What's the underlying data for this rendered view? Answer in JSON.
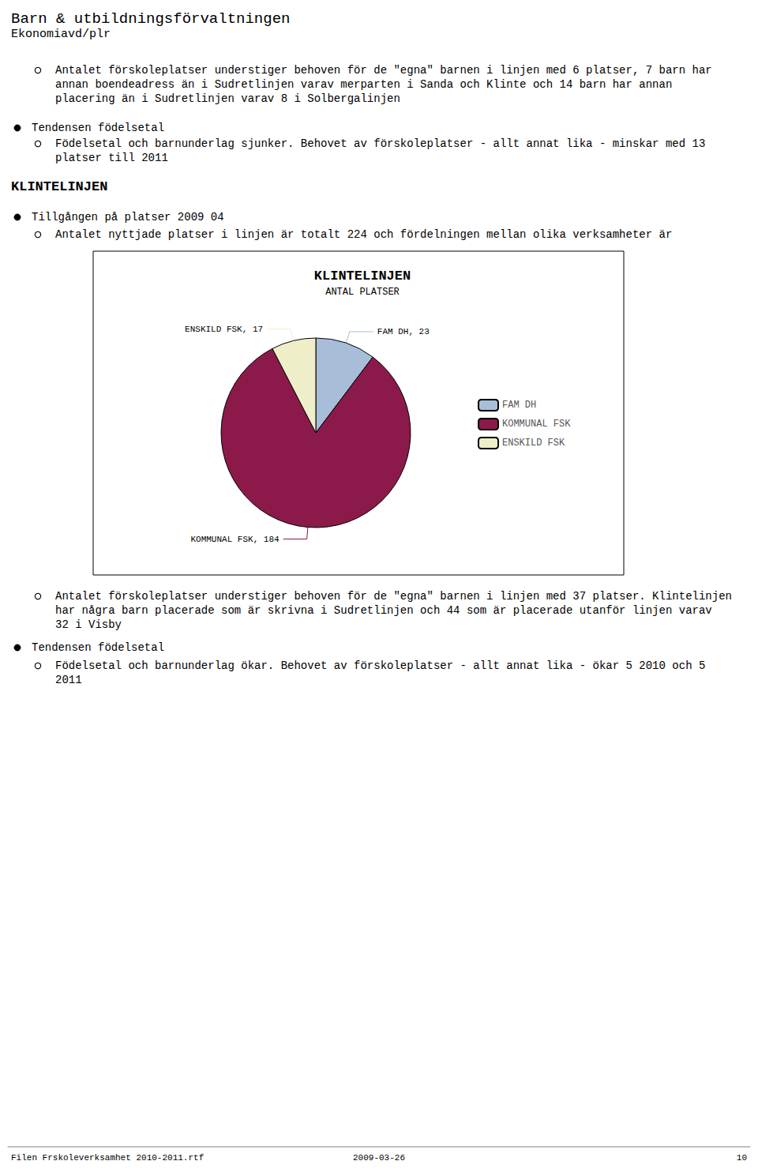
{
  "chart_data": {
    "type": "pie",
    "title": "KLINTELINJEN",
    "subtitle": "ANTAL PLATSER",
    "categories": [
      "FAM DH",
      "KOMMUNAL FSK",
      "ENSKILD FSK"
    ],
    "values": [
      23,
      184,
      17
    ],
    "value_labels": [
      "FAM DH, 23",
      "KOMMUNAL FSK, 184",
      "ENSKILD FSK, 17"
    ],
    "colors": [
      "#a8bdd8",
      "#8b1a4a",
      "#eeeec8"
    ],
    "data_labels": true,
    "legend": "right",
    "annotations": [
      "Barn & utbildningsförvaltningen",
      "Ekonomiavd/plr",
      "Antalet förskoleplatser understiger behoven för de \"egna\" barnen i linjen med 6 platser, 7 barn har",
      "annan boendeadress än i Sudretlinjen varav merparten i Sanda och Klinte och 14 barn har annan",
      "placering än i Sudretlinjen varav 8 i Solbergalinjen",
      "Tendensen födelsetal",
      "Födelsetal och barnunderlag sjunker. Behovet av förskoleplatser - allt annat lika - minskar med 13",
      "platser till 2011",
      "KLINTELINJEN",
      "Tillgången på platser 2009 04",
      "Antalet nyttjade platser i linjen är totalt 224 och fördelningen mellan olika verksamheter är",
      "Antalet förskoleplatser understiger behoven för de \"egna\" barnen i linjen med 37 platser. Klintelinjen",
      "har några barn placerade som är skrivna i Sudretlinjen och 44 som är placerade utanför linjen varav",
      "32 i Visby",
      "Tendensen födelsetal",
      "Födelsetal och barnunderlag ökar. Behovet av förskoleplatser - allt annat lika - ökar 5 2010 och 5",
      "2011",
      "Filen Frskoleverksamhet 2010-2011.rtf",
      "2009-03-26",
      "10"
    ]
  }
}
